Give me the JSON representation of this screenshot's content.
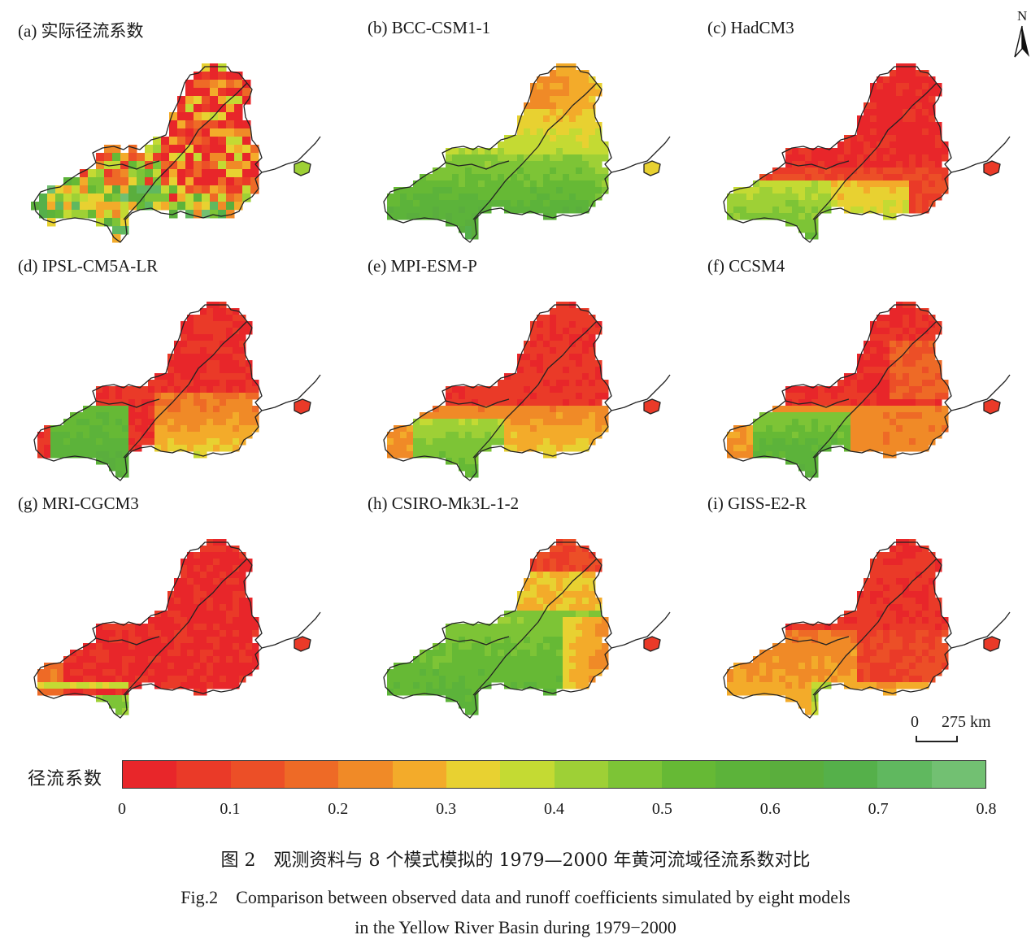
{
  "panels": [
    {
      "title": "(a) 实际径流系数",
      "pattern": "observed"
    },
    {
      "title": "(b) BCC-CSM1-1",
      "pattern": "bcc"
    },
    {
      "title": "(c) HadCM3",
      "pattern": "hadcm3"
    },
    {
      "title": "(d) IPSL-CM5A-LR",
      "pattern": "ipsl"
    },
    {
      "title": "(e) MPI-ESM-P",
      "pattern": "mpi"
    },
    {
      "title": "(f) CCSM4",
      "pattern": "ccsm4"
    },
    {
      "title": "(g) MRI-CGCM3",
      "pattern": "mri"
    },
    {
      "title": "(h) CSIRO-Mk3L-1-2",
      "pattern": "csiro"
    },
    {
      "title": "(i) GISS-E2-R",
      "pattern": "giss"
    }
  ],
  "north_arrow": {
    "label": "N"
  },
  "scale_bar": {
    "zero": "0",
    "distance": "275 km"
  },
  "legend": {
    "title": "径流系数",
    "ticks": [
      "0",
      "0.1",
      "0.2",
      "0.3",
      "0.4",
      "0.5",
      "0.6",
      "0.7",
      "0.8"
    ],
    "range": [
      0,
      0.8
    ],
    "colors": [
      "#e8262a",
      "#ea3a28",
      "#ec4f27",
      "#ee6a26",
      "#f08a27",
      "#f3ab2a",
      "#e8d131",
      "#c4da33",
      "#9ed036",
      "#7dc436",
      "#66b935",
      "#5cb33a",
      "#5aae3d",
      "#55b04a",
      "#60b85f",
      "#72c072"
    ]
  },
  "caption": {
    "zh": "图 2　观测资料与 8 个模式模拟的 1979—2000 年黄河流域径流系数对比",
    "en_line1": "Fig.2　Comparison between observed data and runoff coefficients simulated by eight models",
    "en_line2": "in the Yellow River Basin during 1979−2000"
  }
}
